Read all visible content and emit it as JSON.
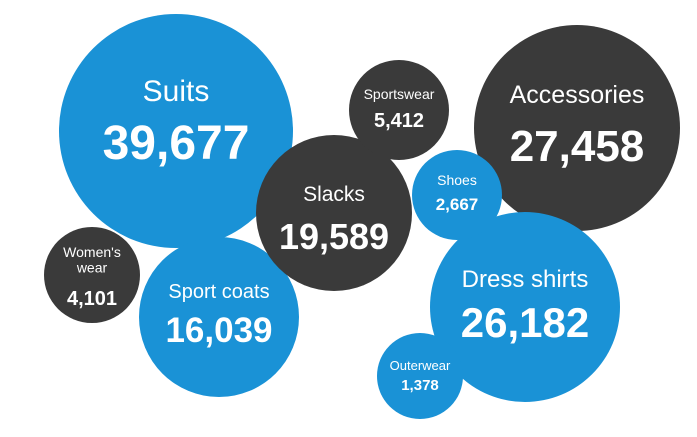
{
  "chart_data": {
    "type": "bubble",
    "title": "",
    "colors": {
      "blue": "#1a92d6",
      "dark": "#3a3a3a",
      "text": "#ffffff"
    },
    "bubbles": [
      {
        "name": "Suits",
        "value": 39677,
        "display": "39,677",
        "color": "blue"
      },
      {
        "name": "Accessories",
        "value": 27458,
        "display": "27,458",
        "color": "dark"
      },
      {
        "name": "Dress shirts",
        "value": 26182,
        "display": "26,182",
        "color": "blue"
      },
      {
        "name": "Slacks",
        "value": 19589,
        "display": "19,589",
        "color": "dark"
      },
      {
        "name": "Sport coats",
        "value": 16039,
        "display": "16,039",
        "color": "blue"
      },
      {
        "name": "Sportswear",
        "value": 5412,
        "display": "5,412",
        "color": "dark"
      },
      {
        "name": "Women's wear",
        "label_lines": [
          "Women's",
          "wear"
        ],
        "value": 4101,
        "display": "4,101",
        "color": "dark"
      },
      {
        "name": "Shoes",
        "value": 2667,
        "display": "2,667",
        "color": "blue"
      },
      {
        "name": "Outerwear",
        "value": 1378,
        "display": "1,378",
        "color": "blue"
      }
    ]
  }
}
